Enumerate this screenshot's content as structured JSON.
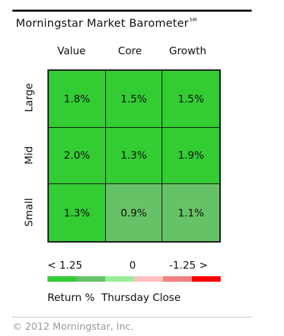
{
  "title": "Morningstar Market Barometer",
  "title_mark": "SM",
  "columns": [
    "Value",
    "Core",
    "Growth"
  ],
  "rows": [
    "Large",
    "Mid",
    "Small"
  ],
  "chart_data": {
    "type": "heatmap",
    "title": "Morningstar Market Barometer",
    "x_categories": [
      "Value",
      "Core",
      "Growth"
    ],
    "y_categories": [
      "Large",
      "Mid",
      "Small"
    ],
    "values": [
      [
        1.8,
        1.5,
        1.5
      ],
      [
        2.0,
        1.3,
        1.9
      ],
      [
        1.3,
        0.9,
        1.1
      ]
    ],
    "labels": [
      [
        "1.8%",
        "1.5%",
        "1.5%"
      ],
      [
        "2.0%",
        "1.3%",
        "1.9%"
      ],
      [
        "1.3%",
        "0.9%",
        "1.1%"
      ]
    ],
    "cell_colors": [
      [
        "#33cc33",
        "#33cc33",
        "#33cc33"
      ],
      [
        "#33cc33",
        "#33cc33",
        "#33cc33"
      ],
      [
        "#33cc33",
        "#66c266",
        "#66c266"
      ]
    ]
  },
  "legend": {
    "left_label": "< 1.25",
    "mid_label": "0",
    "right_label": "-1.25 >",
    "caption_left": "Return %",
    "caption_right": "Thursday Close",
    "swatches": [
      "#33cc33",
      "#66c266",
      "#99ee99",
      "#ffc0c0",
      "#f08080",
      "#ff0000"
    ]
  },
  "copyright": "© 2012 Morningstar, Inc."
}
